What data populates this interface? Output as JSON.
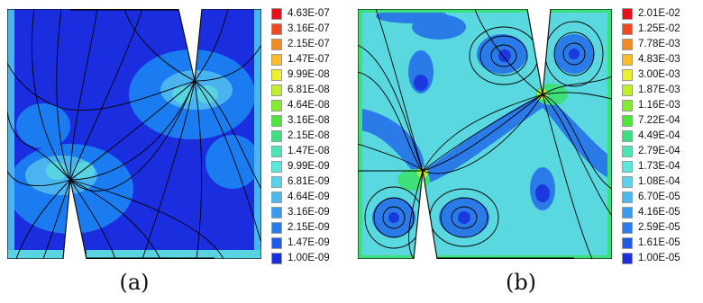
{
  "panels": [
    {
      "caption": "(a)",
      "colors": {
        "background": "#1a2ee0",
        "mid": "#1a7cf0",
        "light": "#4ab4f0",
        "cyan": "#58d4e0",
        "green": "#3fe07a"
      },
      "legend": [
        {
          "label": "4.63E-07",
          "color": "#e8101a"
        },
        {
          "label": "3.16E-07",
          "color": "#f04820"
        },
        {
          "label": "2.15E-07",
          "color": "#f48a22"
        },
        {
          "label": "1.47E-07",
          "color": "#f8bd28"
        },
        {
          "label": "9.99E-08",
          "color": "#eef030"
        },
        {
          "label": "6.81E-08",
          "color": "#c0f02c"
        },
        {
          "label": "4.64E-08",
          "color": "#86ec2e"
        },
        {
          "label": "3.16E-08",
          "color": "#4ee63a"
        },
        {
          "label": "2.15E-08",
          "color": "#3ee084"
        },
        {
          "label": "1.47E-08",
          "color": "#4ae6b8"
        },
        {
          "label": "9.99E-09",
          "color": "#58e8dc"
        },
        {
          "label": "6.81E-09",
          "color": "#5ad2ec"
        },
        {
          "label": "4.64E-09",
          "color": "#4cb8f0"
        },
        {
          "label": "3.16E-09",
          "color": "#3a9cf0"
        },
        {
          "label": "2.15E-09",
          "color": "#2a7cec"
        },
        {
          "label": "1.47E-09",
          "color": "#1e5ae6"
        },
        {
          "label": "1.00E-09",
          "color": "#1a2ee0"
        }
      ]
    },
    {
      "caption": "(b)",
      "colors": {
        "background": "#5ad8e0",
        "mid": "#2a7ae8",
        "deep": "#1a3ae0",
        "green": "#3ee07a",
        "yellowgreen": "#b8ec38"
      },
      "legend": [
        {
          "label": "2.01E-02",
          "color": "#e8101a"
        },
        {
          "label": "1.25E-02",
          "color": "#f04820"
        },
        {
          "label": "7.78E-03",
          "color": "#f48a22"
        },
        {
          "label": "4.83E-03",
          "color": "#f8bd28"
        },
        {
          "label": "3.00E-03",
          "color": "#eef030"
        },
        {
          "label": "1.87E-03",
          "color": "#c0f02c"
        },
        {
          "label": "1.16E-03",
          "color": "#86ec2e"
        },
        {
          "label": "7.22E-04",
          "color": "#4ee63a"
        },
        {
          "label": "4.49E-04",
          "color": "#3ee084"
        },
        {
          "label": "2.79E-04",
          "color": "#4ae6b8"
        },
        {
          "label": "1.73E-04",
          "color": "#58e8dc"
        },
        {
          "label": "1.08E-04",
          "color": "#5ad2ec"
        },
        {
          "label": "6.70E-05",
          "color": "#4cb8f0"
        },
        {
          "label": "4.16E-05",
          "color": "#3a9cf0"
        },
        {
          "label": "2.59E-05",
          "color": "#2a7cec"
        },
        {
          "label": "1.61E-05",
          "color": "#1e5ae6"
        },
        {
          "label": "1.00E-05",
          "color": "#1a2ee0"
        }
      ]
    }
  ]
}
